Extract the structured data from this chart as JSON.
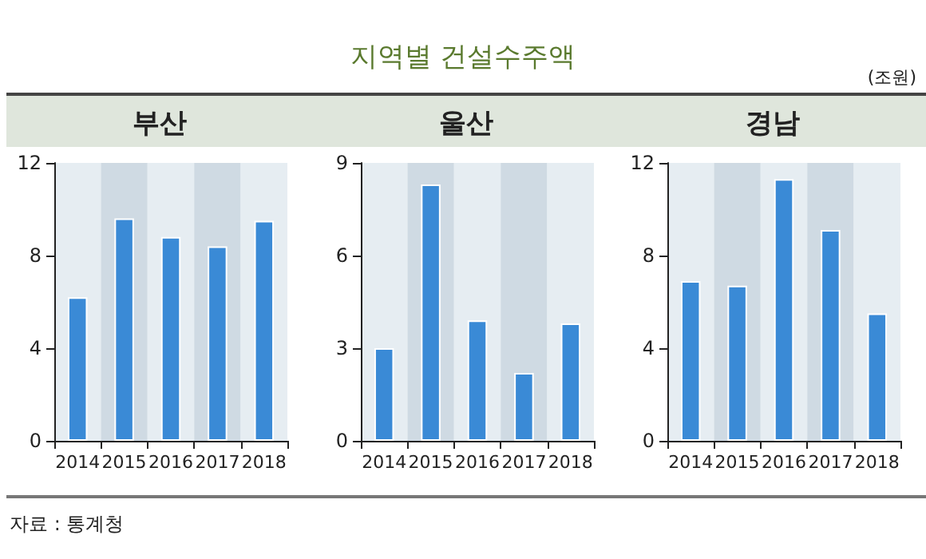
{
  "chart_data": [
    {
      "type": "other",
      "title": "지역별 건설수주액",
      "annotations": [
        "(조원)",
        "자료 : 통계청"
      ]
    },
    {
      "type": "bar",
      "title": "부산",
      "categories": [
        "2014",
        "2015",
        "2016",
        "2017",
        "2018"
      ],
      "values": [
        6.2,
        9.6,
        8.8,
        8.4,
        9.5
      ],
      "color": "#3a8ad6",
      "ylim": [
        0,
        12
      ],
      "yticks": [
        0,
        4,
        8,
        12
      ],
      "grid": false
    },
    {
      "type": "bar",
      "title": "울산",
      "categories": [
        "2014",
        "2015",
        "2016",
        "2017",
        "2018"
      ],
      "values": [
        3.0,
        8.3,
        3.9,
        2.2,
        3.8
      ],
      "color": "#3a8ad6",
      "ylim": [
        0,
        9
      ],
      "yticks": [
        0,
        3,
        6,
        9
      ],
      "grid": false
    },
    {
      "type": "bar",
      "title": "경남",
      "categories": [
        "2014",
        "2015",
        "2016",
        "2017",
        "2018"
      ],
      "values": [
        6.9,
        6.7,
        11.3,
        9.1,
        5.5
      ],
      "color": "#3a8ad6",
      "ylim": [
        0,
        12
      ],
      "yticks": [
        0,
        4,
        8,
        12
      ],
      "grid": false
    }
  ]
}
